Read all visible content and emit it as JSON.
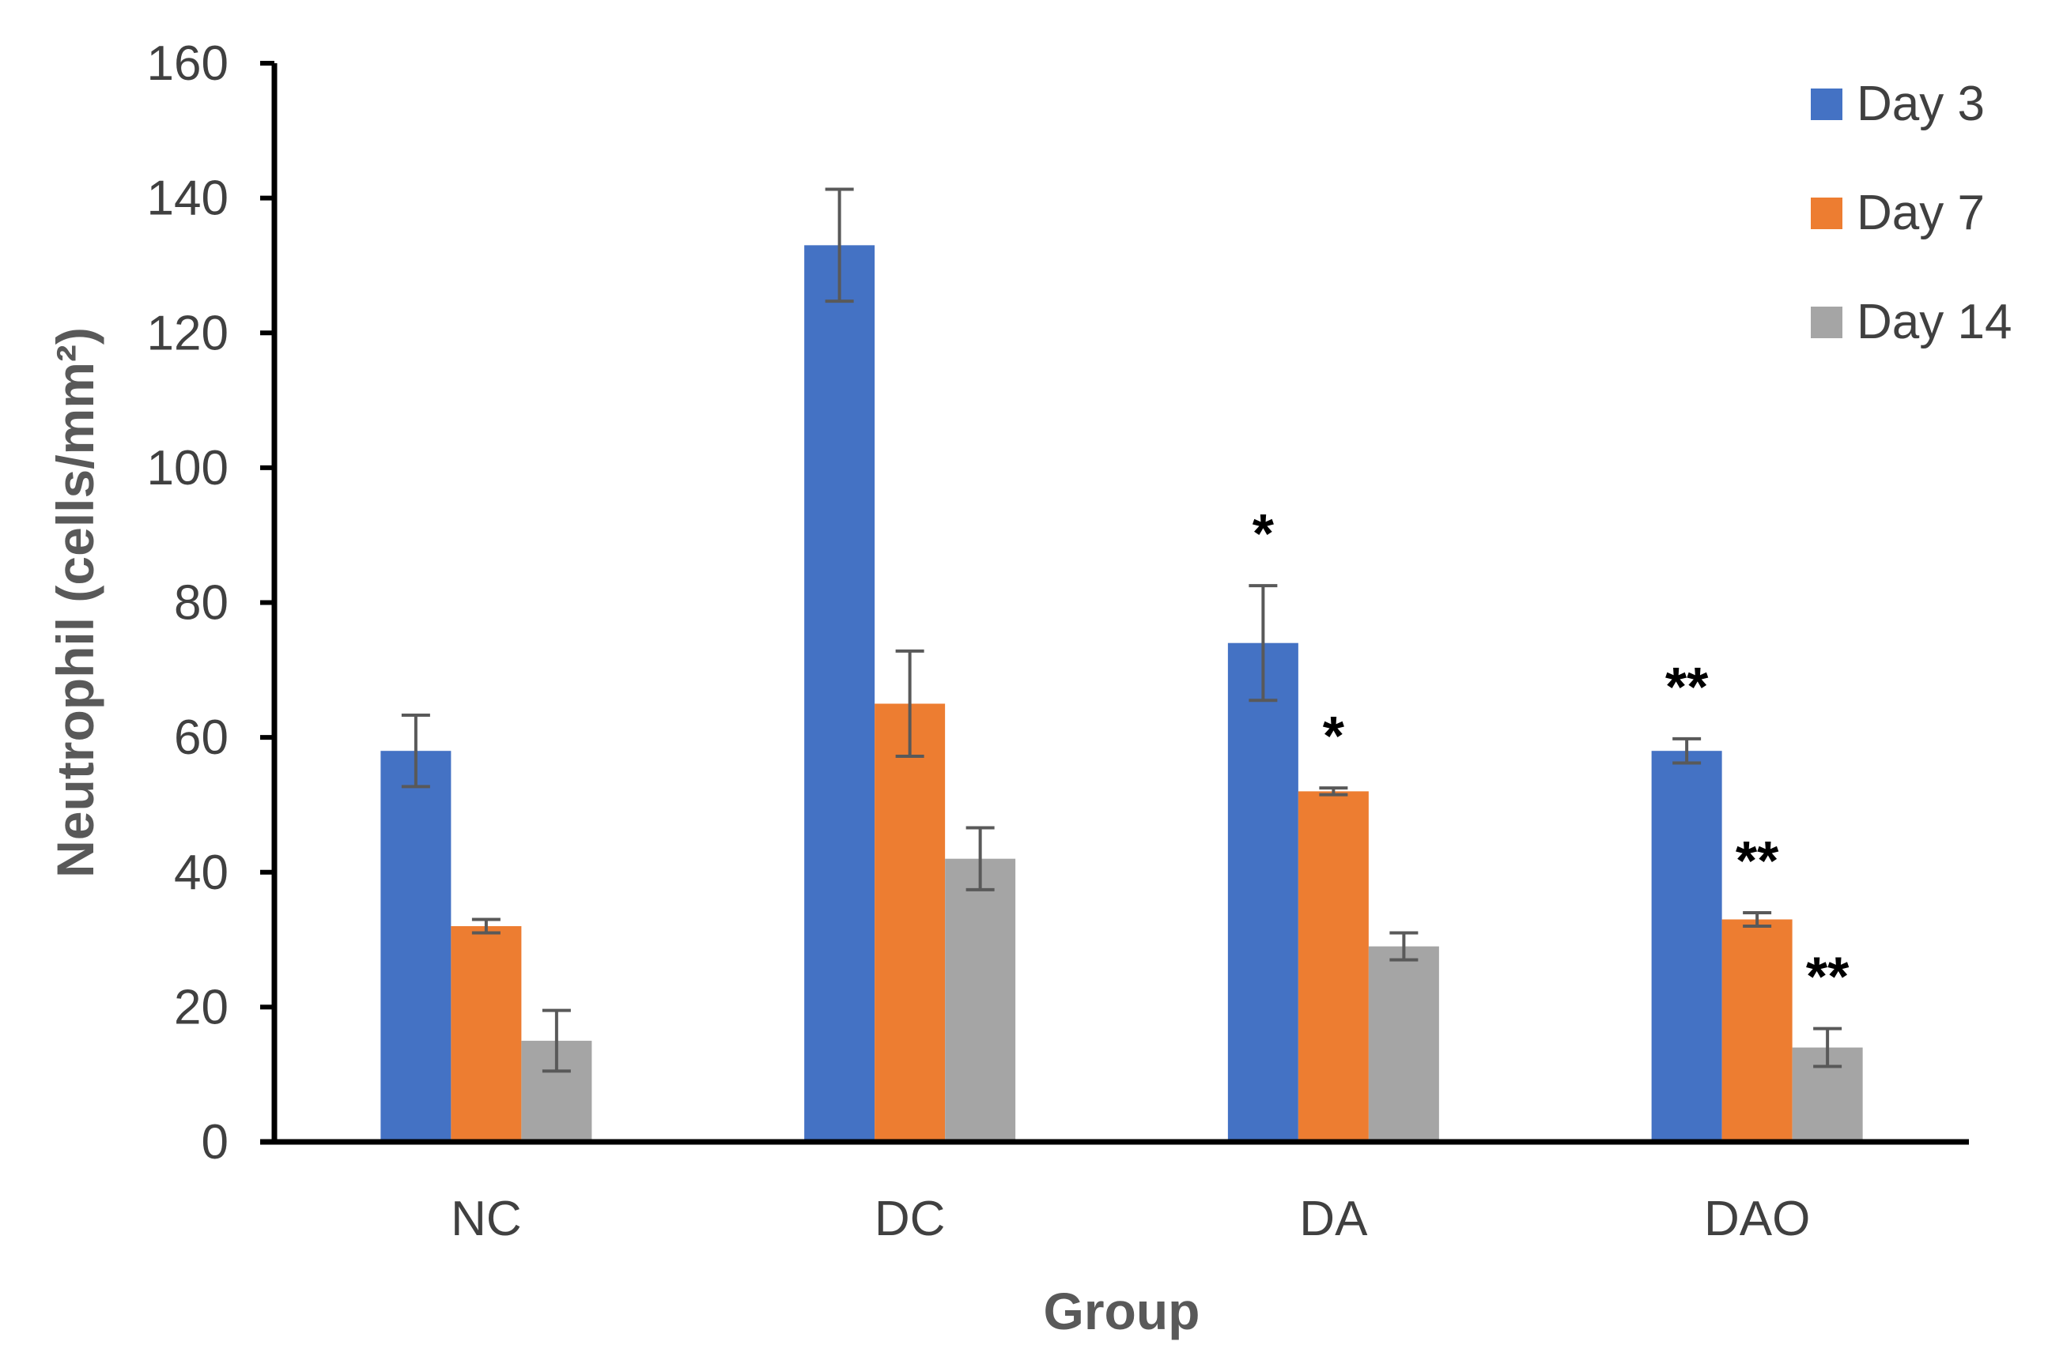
{
  "chart_data": {
    "type": "bar",
    "title": "",
    "xlabel": "Group",
    "ylabel": "Neutrophil (cells/mm²)",
    "ylim": [
      0,
      160
    ],
    "yticks": [
      0,
      20,
      40,
      60,
      80,
      100,
      120,
      140,
      160
    ],
    "categories": [
      "NC",
      "DC",
      "DA",
      "DAO"
    ],
    "series": [
      {
        "name": "Day 3",
        "color": "#4472C4",
        "values": [
          58,
          133,
          74,
          58
        ],
        "errors": [
          5.3,
          8.3,
          8.5,
          1.8
        ],
        "significance": [
          "",
          "",
          "*",
          "**"
        ]
      },
      {
        "name": "Day 7",
        "color": "#ED7D31",
        "values": [
          32,
          65,
          52,
          33
        ],
        "errors": [
          1.0,
          7.8,
          0.5,
          1.0
        ],
        "significance": [
          "",
          "",
          "*",
          "**"
        ]
      },
      {
        "name": "Day 14",
        "color": "#A5A5A5",
        "values": [
          15,
          42,
          29,
          14
        ],
        "errors": [
          4.5,
          4.6,
          2.0,
          2.8
        ],
        "significance": [
          "",
          "",
          "",
          "**"
        ]
      }
    ],
    "legend_position": "top-right",
    "grid": false
  }
}
